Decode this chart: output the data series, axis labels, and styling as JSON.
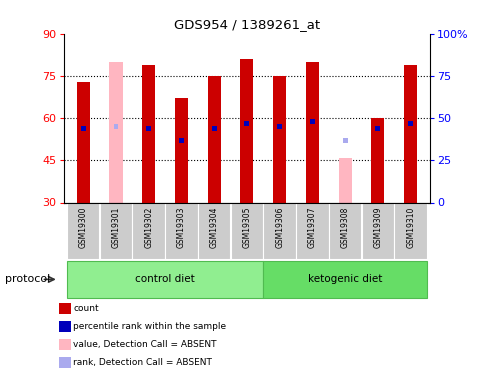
{
  "title": "GDS954 / 1389261_at",
  "samples": [
    "GSM19300",
    "GSM19301",
    "GSM19302",
    "GSM19303",
    "GSM19304",
    "GSM19305",
    "GSM19306",
    "GSM19307",
    "GSM19308",
    "GSM19309",
    "GSM19310"
  ],
  "red_values": [
    73,
    0,
    79,
    67,
    75,
    81,
    75,
    80,
    0,
    60,
    79
  ],
  "pink_values": [
    0,
    80,
    0,
    0,
    0,
    0,
    0,
    0,
    46,
    0,
    0
  ],
  "blue_pct": [
    44,
    0,
    44,
    37,
    44,
    47,
    45,
    48,
    0,
    44,
    47
  ],
  "lblue_pct": [
    0,
    45,
    0,
    0,
    0,
    0,
    0,
    0,
    37,
    0,
    0
  ],
  "control_diet_indices": [
    0,
    1,
    2,
    3,
    4,
    5
  ],
  "ketogenic_diet_indices": [
    6,
    7,
    8,
    9,
    10
  ],
  "ymin": 30,
  "ymax": 90,
  "yticks_left": [
    30,
    45,
    60,
    75,
    90
  ],
  "yticks_right_vals": [
    0,
    25,
    50,
    75,
    100
  ],
  "yticks_right_labels": [
    "0",
    "25",
    "50",
    "75",
    "100%"
  ],
  "grid_vals": [
    45,
    60,
    75
  ],
  "red_color": "#cc0000",
  "pink_color": "#ffb6c1",
  "blue_color": "#0000bb",
  "light_blue_color": "#aaaaee",
  "bg_color": "#ffffff",
  "control_label": "control diet",
  "ketogenic_label": "ketogenic diet",
  "protocol_label": "protocol",
  "legend_items": [
    "count",
    "percentile rank within the sample",
    "value, Detection Call = ABSENT",
    "rank, Detection Call = ABSENT"
  ],
  "legend_colors": [
    "#cc0000",
    "#0000bb",
    "#ffb6c1",
    "#aaaaee"
  ],
  "bar_width": 0.4,
  "blue_bar_width": 0.15
}
